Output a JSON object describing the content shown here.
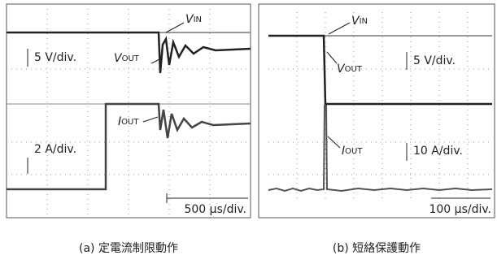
{
  "panels": [
    {
      "labels": {
        "vin": {
          "main": "V",
          "sub": "IN"
        },
        "vout": {
          "main": "V",
          "sub": "OUT"
        },
        "iout": {
          "main": "I",
          "sub": "OUT"
        }
      },
      "scales": {
        "voltage": "5 V/div.",
        "current": "2 A/div.",
        "time": "500 μs/div."
      },
      "caption": "(a) 定電流制限動作"
    },
    {
      "labels": {
        "vin": {
          "main": "V",
          "sub": "IN"
        },
        "vout": {
          "main": "V",
          "sub": "OUT"
        },
        "iout": {
          "main": "I",
          "sub": "OUT"
        }
      },
      "scales": {
        "voltage": "5 V/div.",
        "current": "10 A/div.",
        "time": "100 μs/div."
      },
      "caption": "(b) 短絡保護動作"
    }
  ]
}
